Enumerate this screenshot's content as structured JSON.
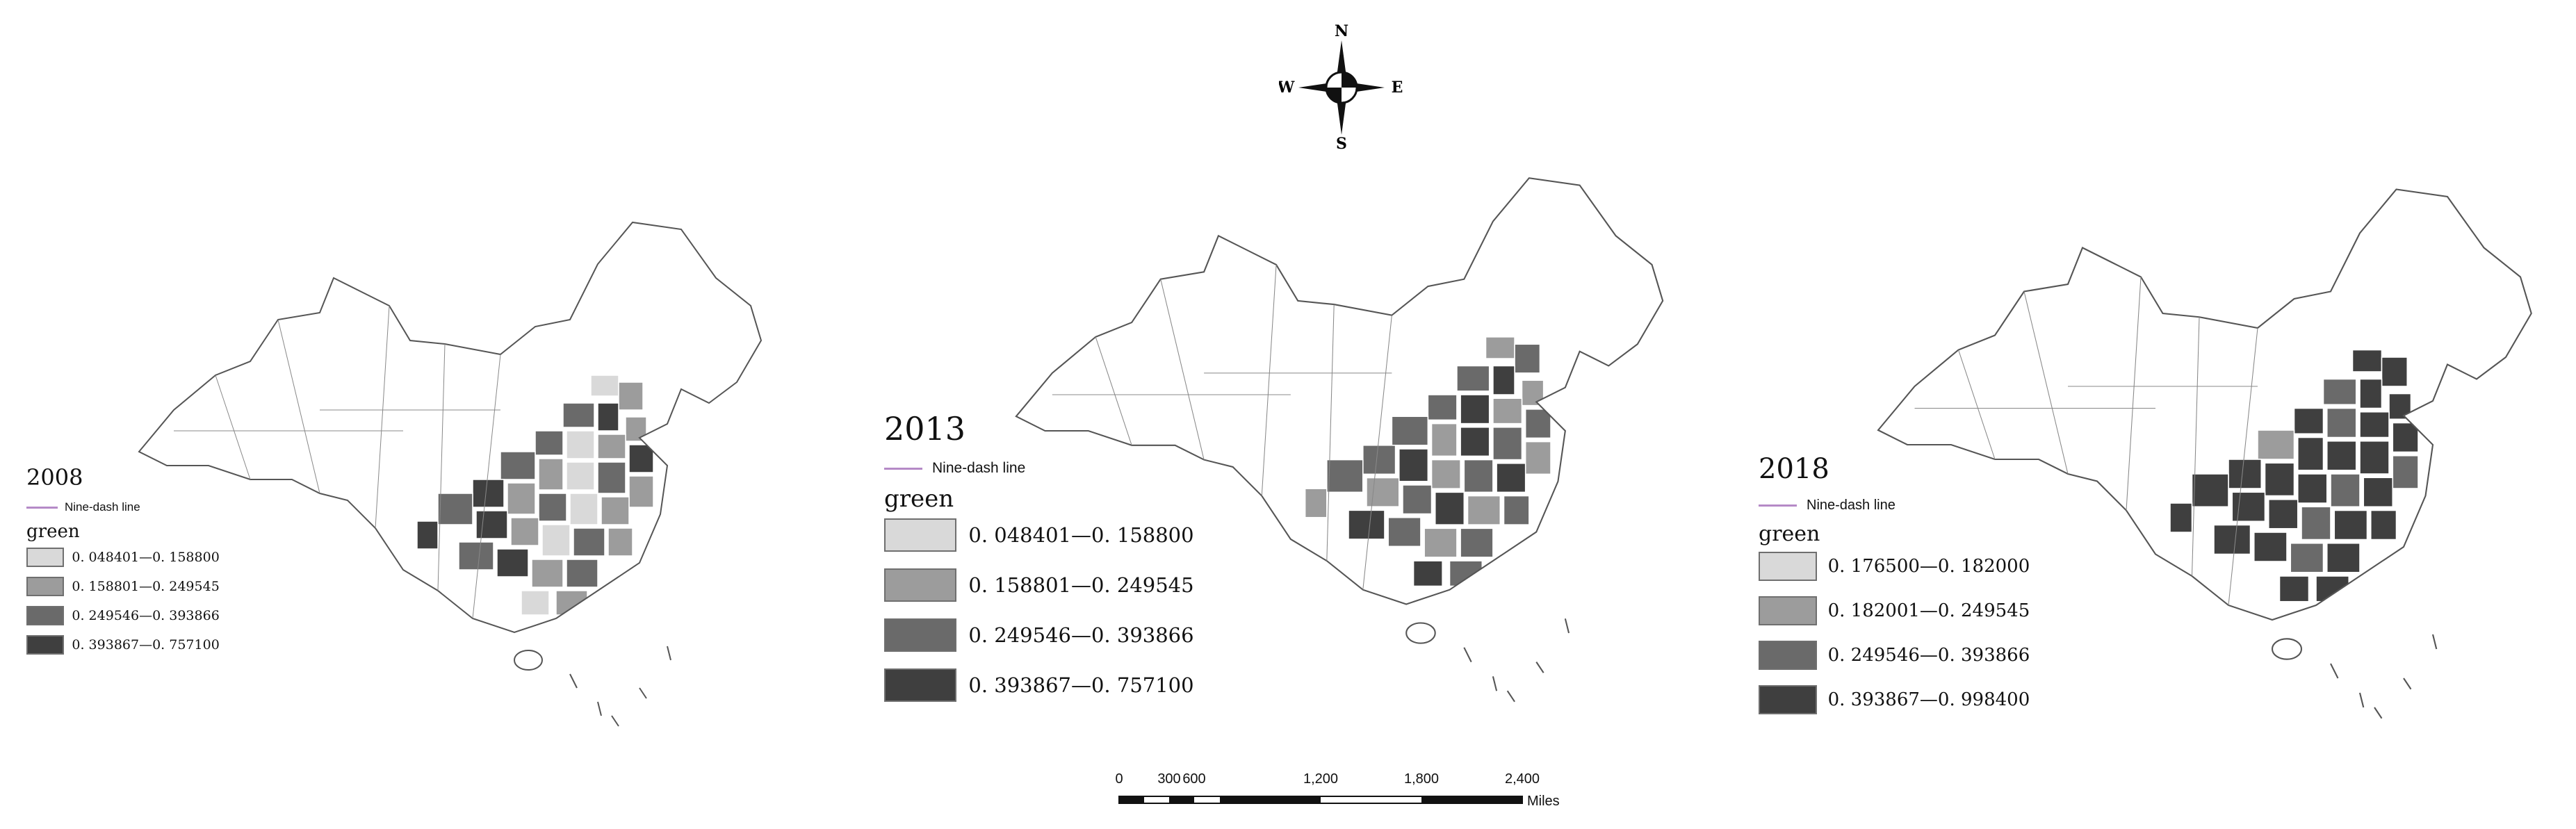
{
  "classes": [
    {
      "key": "c1",
      "color": "#d9d9d9"
    },
    {
      "key": "c2",
      "color": "#9c9c9c"
    },
    {
      "key": "c3",
      "color": "#6a6a6a"
    },
    {
      "key": "c4",
      "color": "#3f3f3f"
    }
  ],
  "panels": [
    {
      "year": "2008",
      "nine_dash_label": "Nine-dash line",
      "legend_title": "green",
      "legend": [
        "0. 048401—0. 158800",
        "0. 158801—0. 249545",
        "0. 249546—0. 393866",
        "0. 393867—0. 757100"
      ],
      "shaded_pattern": [
        0,
        1,
        2,
        3,
        1,
        2,
        0,
        1,
        3,
        2,
        1,
        0,
        2,
        1,
        3,
        1,
        2,
        0,
        1,
        2,
        3,
        1,
        0,
        2,
        1,
        2,
        3,
        1,
        2,
        0,
        1,
        3
      ]
    },
    {
      "year": "2013",
      "nine_dash_label": "Nine-dash line",
      "legend_title": "green",
      "legend": [
        "0. 048401—0. 158800",
        "0. 158801—0. 249545",
        "0. 249546—0. 393866",
        "0. 393867—0. 757100"
      ],
      "shaded_pattern": [
        1,
        2,
        2,
        3,
        1,
        2,
        3,
        1,
        2,
        2,
        1,
        3,
        2,
        1,
        2,
        3,
        1,
        2,
        3,
        2,
        1,
        2,
        3,
        1,
        2,
        3,
        2,
        1,
        2,
        3,
        2,
        1
      ]
    },
    {
      "year": "2018",
      "nine_dash_label": "Nine-dash line",
      "legend_title": "green",
      "legend": [
        "0. 176500—0. 182000",
        "0. 182001—0. 249545",
        "0. 249546—0. 393866",
        "0. 393867—0. 998400"
      ],
      "shaded_pattern": [
        3,
        3,
        2,
        3,
        3,
        3,
        2,
        3,
        3,
        1,
        3,
        3,
        3,
        2,
        3,
        3,
        3,
        2,
        3,
        3,
        3,
        3,
        2,
        3,
        3,
        3,
        3,
        2,
        3,
        3,
        3,
        3
      ]
    }
  ],
  "compass": {
    "n": "N",
    "s": "S",
    "e": "E",
    "w": "W"
  },
  "scale": {
    "ticks": [
      "0",
      "300",
      "600",
      "1,200",
      "1,800",
      "2,400"
    ],
    "unit": "Miles"
  }
}
